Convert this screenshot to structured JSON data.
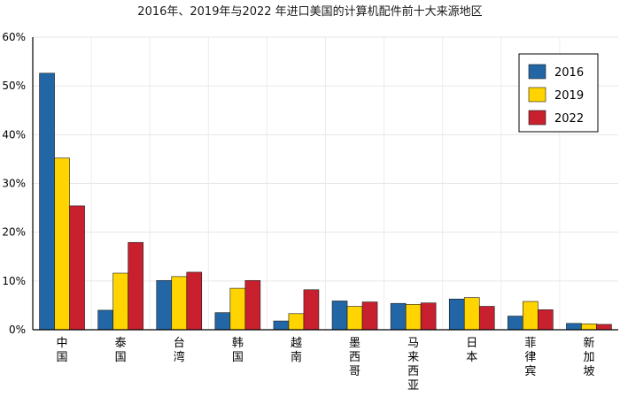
{
  "chart_data": {
    "type": "bar",
    "title": "2016年、2019年与2022 年进口美国的计算机配件前十大来源地区",
    "xlabel": "",
    "ylabel": "",
    "ylim": [
      0,
      60
    ],
    "yticks": [
      0,
      10,
      20,
      30,
      40,
      50,
      60
    ],
    "ytick_labels": [
      "0%",
      "10%",
      "20%",
      "30%",
      "40%",
      "50%",
      "60%"
    ],
    "categories": [
      "中国",
      "泰国",
      "台湾",
      "韩国",
      "越南",
      "墨西哥",
      "马来西亚",
      "日本",
      "菲律宾",
      "新加坡"
    ],
    "series": [
      {
        "name": "2016",
        "color": "#2266a6",
        "values": [
          52.6,
          4.0,
          10.1,
          3.5,
          1.8,
          5.9,
          5.4,
          6.3,
          2.8,
          1.3
        ]
      },
      {
        "name": "2019",
        "color": "#ffd400",
        "values": [
          35.2,
          11.6,
          10.9,
          8.5,
          3.3,
          4.8,
          5.2,
          6.6,
          5.8,
          1.2
        ]
      },
      {
        "name": "2022",
        "color": "#c8202f",
        "values": [
          25.4,
          17.9,
          11.8,
          10.1,
          8.2,
          5.7,
          5.5,
          4.8,
          4.1,
          1.1
        ]
      }
    ],
    "grid": true,
    "legend_position": "top-right"
  }
}
